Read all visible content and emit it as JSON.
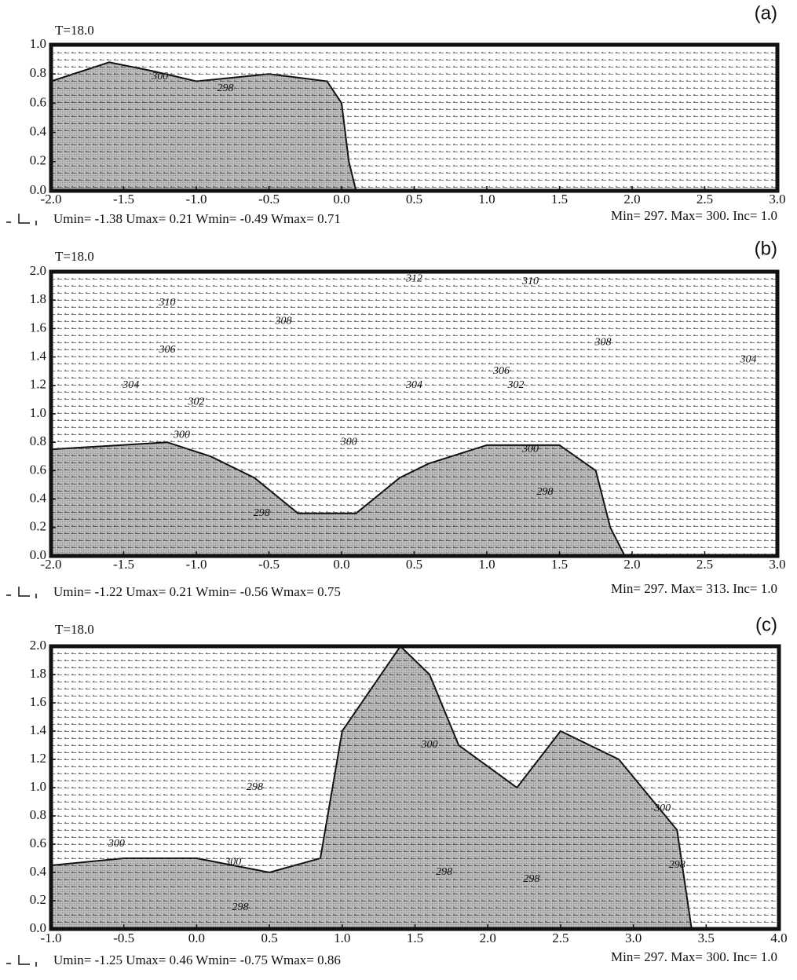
{
  "chart_data": [
    {
      "type": "contour",
      "panel_label": "(a)",
      "time_label": "T=18.0",
      "xlim": [
        -2,
        3
      ],
      "ylim": [
        0,
        1
      ],
      "xticks": [
        {
          "value": -2,
          "label": "-2.0"
        },
        -1.5,
        {
          "value": -1,
          "label": "-1.0"
        },
        -0.5,
        {
          "value": 0,
          "label": "0.0"
        },
        0.5,
        {
          "value": 1,
          "label": "1.0"
        },
        1.5,
        {
          "value": 2,
          "label": "2.0"
        },
        2.5,
        {
          "value": 3,
          "label": "3.0"
        }
      ],
      "yticks": [
        {
          "value": 0,
          "label": "0.0"
        },
        0.2,
        0.4,
        0.6,
        0.8,
        {
          "value": 1,
          "label": "1.0"
        }
      ],
      "annotations": [
        {
          "text": "300",
          "x": -1.25,
          "y": 0.78
        },
        {
          "text": "298",
          "x": -0.8,
          "y": 0.7
        }
      ],
      "velocity_stats": "Umin=  -1.38 Umax=  0.21 Wmin=  -0.49 Wmax=  0.71",
      "contour_stats": "Min= 297.    Max= 300.    Inc= 1.0"
    },
    {
      "type": "contour",
      "panel_label": "(b)",
      "time_label": "T=18.0",
      "xlim": [
        -2,
        3
      ],
      "ylim": [
        0,
        2
      ],
      "xticks": [
        {
          "value": -2,
          "label": "-2.0"
        },
        -1.5,
        {
          "value": -1,
          "label": "-1.0"
        },
        -0.5,
        {
          "value": 0,
          "label": "0.0"
        },
        0.5,
        {
          "value": 1,
          "label": "1.0"
        },
        1.5,
        {
          "value": 2,
          "label": "2.0"
        },
        2.5,
        {
          "value": 3,
          "label": "3.0"
        }
      ],
      "yticks": [
        {
          "value": 0,
          "label": "0.0"
        },
        0.2,
        0.4,
        0.6,
        0.8,
        {
          "value": 1,
          "label": "1.0"
        },
        1.2,
        1.4,
        1.6,
        1.8,
        {
          "value": 2,
          "label": "2.0"
        }
      ],
      "annotations": [
        {
          "text": "312",
          "x": 0.5,
          "y": 1.95
        },
        {
          "text": "310",
          "x": 1.3,
          "y": 1.93
        },
        {
          "text": "310",
          "x": -1.2,
          "y": 1.78
        },
        {
          "text": "308",
          "x": -0.4,
          "y": 1.65
        },
        {
          "text": "308",
          "x": 1.8,
          "y": 1.5
        },
        {
          "text": "306",
          "x": -1.2,
          "y": 1.45
        },
        {
          "text": "304",
          "x": 2.8,
          "y": 1.38
        },
        {
          "text": "306",
          "x": 1.1,
          "y": 1.3
        },
        {
          "text": "304",
          "x": -1.45,
          "y": 1.2
        },
        {
          "text": "304",
          "x": 0.5,
          "y": 1.2
        },
        {
          "text": "302",
          "x": 1.2,
          "y": 1.2
        },
        {
          "text": "302",
          "x": -1.0,
          "y": 1.08
        },
        {
          "text": "300",
          "x": -1.1,
          "y": 0.85
        },
        {
          "text": "300",
          "x": 0.05,
          "y": 0.8
        },
        {
          "text": "300",
          "x": 1.3,
          "y": 0.75
        },
        {
          "text": "298",
          "x": 1.4,
          "y": 0.45
        },
        {
          "text": "298",
          "x": -0.55,
          "y": 0.3
        }
      ],
      "velocity_stats": "Umin=  -1.22 Umax=  0.21 Wmin=  -0.56 Wmax=  0.75",
      "contour_stats": "Min= 297.    Max= 313.    Inc= 1.0"
    },
    {
      "type": "contour",
      "panel_label": "(c)",
      "time_label": "T=18.0",
      "xlim": [
        -1,
        4
      ],
      "ylim": [
        0,
        2
      ],
      "xticks": [
        {
          "value": -1,
          "label": "-1.0"
        },
        -0.5,
        {
          "value": 0,
          "label": "0.0"
        },
        0.5,
        {
          "value": 1,
          "label": "1.0"
        },
        1.5,
        {
          "value": 2,
          "label": "2.0"
        },
        2.5,
        {
          "value": 3,
          "label": "3.0"
        },
        3.5,
        {
          "value": 4,
          "label": "4.0"
        }
      ],
      "yticks": [
        {
          "value": 0,
          "label": "0.0"
        },
        0.2,
        0.4,
        0.6,
        0.8,
        {
          "value": 1,
          "label": "1.0"
        },
        1.2,
        1.4,
        1.6,
        1.8,
        {
          "value": 2,
          "label": "2.0"
        }
      ],
      "annotations": [
        {
          "text": "300",
          "x": 1.6,
          "y": 1.3
        },
        {
          "text": "298",
          "x": 0.4,
          "y": 1.0
        },
        {
          "text": "300",
          "x": 3.2,
          "y": 0.85
        },
        {
          "text": "300",
          "x": -0.55,
          "y": 0.6
        },
        {
          "text": "300",
          "x": 0.25,
          "y": 0.47
        },
        {
          "text": "298",
          "x": 0.3,
          "y": 0.15
        },
        {
          "text": "298",
          "x": 1.7,
          "y": 0.4
        },
        {
          "text": "298",
          "x": 2.3,
          "y": 0.35
        },
        {
          "text": "298",
          "x": 3.3,
          "y": 0.45
        }
      ],
      "velocity_stats": "Umin=  -1.25 Umax=  0.46 Wmin=  -0.75 Wmax=  0.86",
      "contour_stats": "Min= 297.    Max= 300.    Inc= 1.0"
    }
  ]
}
